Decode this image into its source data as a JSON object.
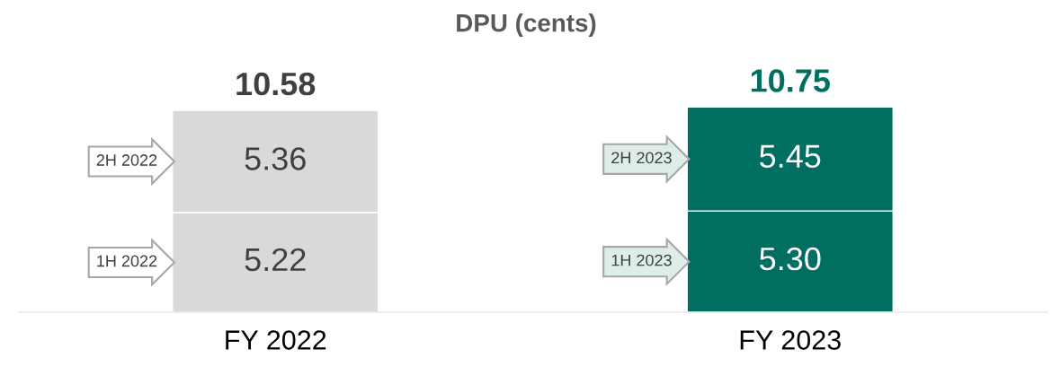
{
  "chart_data": {
    "type": "bar",
    "stacked": true,
    "title": "DPU (cents)",
    "categories": [
      "FY 2022",
      "FY 2023"
    ],
    "series": [
      {
        "colors": [
          "#d9d9d9",
          "#006e60"
        ],
        "values": [
          5.22,
          5.3
        ],
        "value_labels": [
          "5.22",
          "5.30"
        ]
      },
      {
        "colors": [
          "#d9d9d9",
          "#006e60"
        ],
        "values": [
          5.36,
          5.45
        ],
        "value_labels": [
          "5.36",
          "5.45"
        ]
      }
    ],
    "totals": [
      "10.58",
      "10.75"
    ],
    "annotations": [
      "1H 2022",
      "2H 2022",
      "1H 2023",
      "2H 2023"
    ],
    "grid": false,
    "legend": false
  }
}
